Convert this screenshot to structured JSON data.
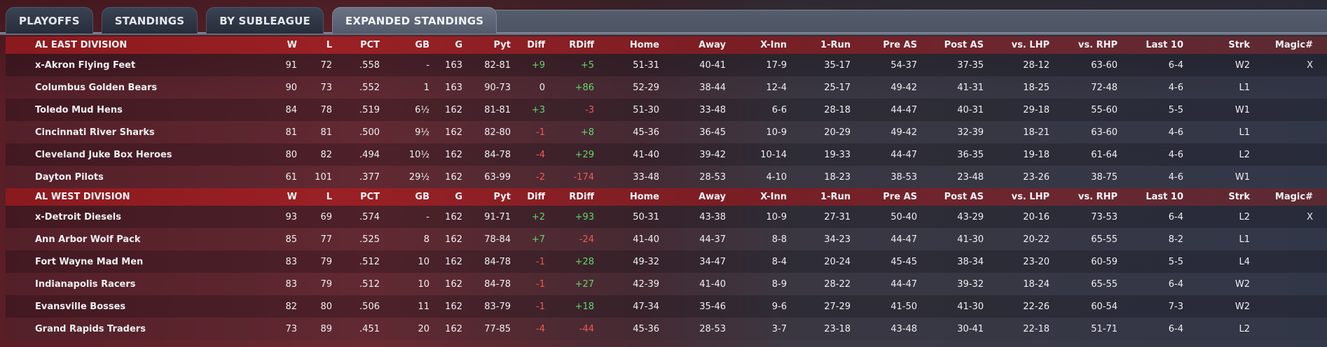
{
  "tabs": [
    {
      "label": "PLAYOFFS"
    },
    {
      "label": "STANDINGS"
    },
    {
      "label": "BY SUBLEAGUE"
    },
    {
      "label": "EXPANDED STANDINGS",
      "active": true
    }
  ],
  "columns": [
    "W",
    "L",
    "PCT",
    "GB",
    "G",
    "Pyt",
    "Diff",
    "RDiff",
    "Home",
    "Away",
    "X-Inn",
    "1-Run",
    "Pre AS",
    "Post AS",
    "vs. LHP",
    "vs. RHP",
    "Last 10",
    "Strk",
    "Magic#"
  ],
  "colors": {
    "positive": "#5fd86a",
    "negative": "#ee5a52",
    "header_red": "#9a2024"
  },
  "divisions": [
    {
      "name": "AL EAST DIVISION",
      "teams": [
        {
          "name": "x-Akron  Flying Feet",
          "w": "91",
          "l": "72",
          "pct": ".558",
          "gb": "-",
          "g": "163",
          "pyt": "82-81",
          "diff": "+9",
          "rdiff": "+5",
          "home": "51-31",
          "away": "40-41",
          "xinn": "17-9",
          "onerun": "35-17",
          "preas": "54-37",
          "postas": "37-35",
          "vlhp": "28-12",
          "vrhp": "63-60",
          "last10": "6-4",
          "strk": "W2",
          "magic": "X"
        },
        {
          "name": "Columbus Golden Bears",
          "w": "90",
          "l": "73",
          "pct": ".552",
          "gb": "1",
          "g": "163",
          "pyt": "90-73",
          "diff": "0",
          "rdiff": "+86",
          "home": "52-29",
          "away": "38-44",
          "xinn": "12-4",
          "onerun": "25-17",
          "preas": "49-42",
          "postas": "41-31",
          "vlhp": "18-25",
          "vrhp": "72-48",
          "last10": "4-6",
          "strk": "L1",
          "magic": ""
        },
        {
          "name": "Toledo  Mud Hens",
          "w": "84",
          "l": "78",
          "pct": ".519",
          "gb": "6½",
          "g": "162",
          "pyt": "81-81",
          "diff": "+3",
          "rdiff": "-3",
          "home": "51-30",
          "away": "33-48",
          "xinn": "6-6",
          "onerun": "28-18",
          "preas": "44-47",
          "postas": "40-31",
          "vlhp": "29-18",
          "vrhp": "55-60",
          "last10": "5-5",
          "strk": "W1",
          "magic": ""
        },
        {
          "name": "Cincinnati River Sharks",
          "w": "81",
          "l": "81",
          "pct": ".500",
          "gb": "9½",
          "g": "162",
          "pyt": "82-80",
          "diff": "-1",
          "rdiff": "+8",
          "home": "45-36",
          "away": "36-45",
          "xinn": "10-9",
          "onerun": "20-29",
          "preas": "49-42",
          "postas": "32-39",
          "vlhp": "18-21",
          "vrhp": "63-60",
          "last10": "4-6",
          "strk": "L1",
          "magic": ""
        },
        {
          "name": "Cleveland Juke Box Heroes",
          "w": "80",
          "l": "82",
          "pct": ".494",
          "gb": "10½",
          "g": "162",
          "pyt": "84-78",
          "diff": "-4",
          "rdiff": "+29",
          "home": "41-40",
          "away": "39-42",
          "xinn": "10-14",
          "onerun": "19-33",
          "preas": "44-47",
          "postas": "36-35",
          "vlhp": "19-18",
          "vrhp": "61-64",
          "last10": "4-6",
          "strk": "L2",
          "magic": ""
        },
        {
          "name": "Dayton Pilots",
          "w": "61",
          "l": "101",
          "pct": ".377",
          "gb": "29½",
          "g": "162",
          "pyt": "63-99",
          "diff": "-2",
          "rdiff": "-174",
          "home": "33-48",
          "away": "28-53",
          "xinn": "4-10",
          "onerun": "18-23",
          "preas": "38-53",
          "postas": "23-48",
          "vlhp": "23-26",
          "vrhp": "38-75",
          "last10": "4-6",
          "strk": "W1",
          "magic": ""
        }
      ]
    },
    {
      "name": "AL WEST DIVISION",
      "teams": [
        {
          "name": "x-Detroit Diesels",
          "w": "93",
          "l": "69",
          "pct": ".574",
          "gb": "-",
          "g": "162",
          "pyt": "91-71",
          "diff": "+2",
          "rdiff": "+93",
          "home": "50-31",
          "away": "43-38",
          "xinn": "10-9",
          "onerun": "27-31",
          "preas": "50-40",
          "postas": "43-29",
          "vlhp": "20-16",
          "vrhp": "73-53",
          "last10": "6-4",
          "strk": "L2",
          "magic": "X"
        },
        {
          "name": "Ann Arbor Wolf Pack",
          "w": "85",
          "l": "77",
          "pct": ".525",
          "gb": "8",
          "g": "162",
          "pyt": "78-84",
          "diff": "+7",
          "rdiff": "-24",
          "home": "41-40",
          "away": "44-37",
          "xinn": "8-8",
          "onerun": "34-23",
          "preas": "44-47",
          "postas": "41-30",
          "vlhp": "20-22",
          "vrhp": "65-55",
          "last10": "8-2",
          "strk": "L1",
          "magic": ""
        },
        {
          "name": "Fort Wayne Mad Men",
          "w": "83",
          "l": "79",
          "pct": ".512",
          "gb": "10",
          "g": "162",
          "pyt": "84-78",
          "diff": "-1",
          "rdiff": "+28",
          "home": "49-32",
          "away": "34-47",
          "xinn": "8-4",
          "onerun": "20-24",
          "preas": "45-45",
          "postas": "38-34",
          "vlhp": "23-20",
          "vrhp": "60-59",
          "last10": "5-5",
          "strk": "L4",
          "magic": ""
        },
        {
          "name": "Indianapolis Racers",
          "w": "83",
          "l": "79",
          "pct": ".512",
          "gb": "10",
          "g": "162",
          "pyt": "84-78",
          "diff": "-1",
          "rdiff": "+27",
          "home": "42-39",
          "away": "41-40",
          "xinn": "8-9",
          "onerun": "28-22",
          "preas": "44-47",
          "postas": "39-32",
          "vlhp": "18-24",
          "vrhp": "65-55",
          "last10": "6-4",
          "strk": "W2",
          "magic": ""
        },
        {
          "name": "Evansville Bosses",
          "w": "82",
          "l": "80",
          "pct": ".506",
          "gb": "11",
          "g": "162",
          "pyt": "83-79",
          "diff": "-1",
          "rdiff": "+18",
          "home": "47-34",
          "away": "35-46",
          "xinn": "9-6",
          "onerun": "27-29",
          "preas": "41-50",
          "postas": "41-30",
          "vlhp": "22-26",
          "vrhp": "60-54",
          "last10": "7-3",
          "strk": "W2",
          "magic": ""
        },
        {
          "name": "Grand Rapids Traders",
          "w": "73",
          "l": "89",
          "pct": ".451",
          "gb": "20",
          "g": "162",
          "pyt": "77-85",
          "diff": "-4",
          "rdiff": "-44",
          "home": "45-36",
          "away": "28-53",
          "xinn": "3-7",
          "onerun": "23-18",
          "preas": "43-48",
          "postas": "30-41",
          "vlhp": "22-18",
          "vrhp": "51-71",
          "last10": "6-4",
          "strk": "L2",
          "magic": ""
        }
      ]
    }
  ]
}
